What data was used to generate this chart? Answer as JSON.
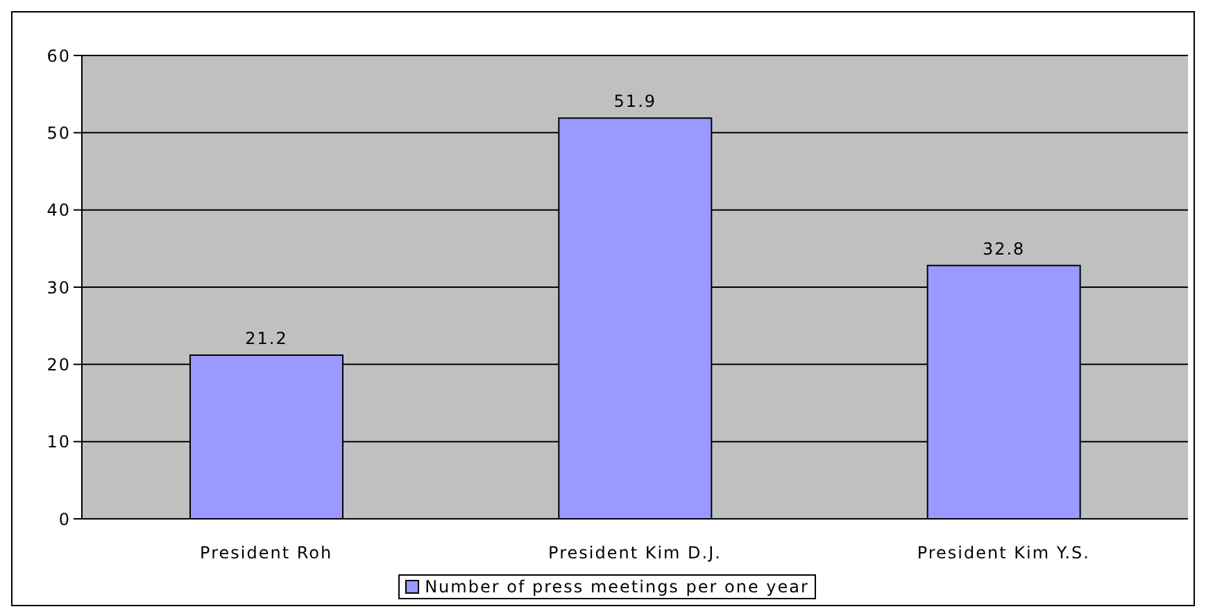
{
  "chart_data": {
    "type": "bar",
    "categories": [
      "President Roh",
      "President Kim D.J.",
      "President Kim Y.S."
    ],
    "series": [
      {
        "name": "Number of press meetings per one year",
        "color": "#9999ff",
        "values": [
          21.2,
          51.9,
          32.8
        ]
      }
    ],
    "ylim": [
      0,
      60
    ],
    "yticks": [
      0,
      10,
      20,
      30,
      40,
      50,
      60
    ],
    "grid": "y",
    "legend": "bottom",
    "data_labels": true
  }
}
